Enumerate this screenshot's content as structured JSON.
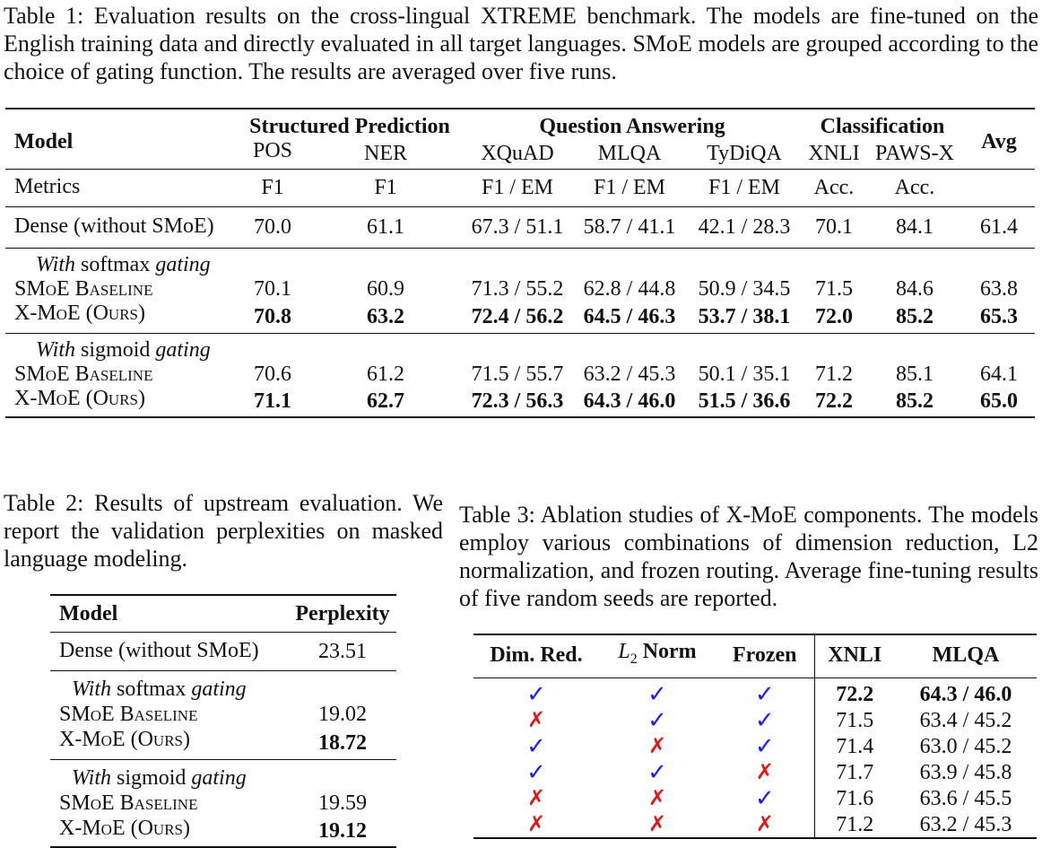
{
  "table1": {
    "caption": "Table 1: Evaluation results on the cross-lingual XTREME benchmark. The models are fine-tuned on the English training data and directly evaluated in all target languages. SMoE models are grouped according to the choice of gating function. The results are averaged over five runs.",
    "group_headers": [
      "Structured Prediction",
      "Question Answering",
      "Classification"
    ],
    "model_header": "Model",
    "avg_header": "Avg",
    "columns": [
      "POS",
      "NER",
      "XQuAD",
      "MLQA",
      "TyDiQA",
      "XNLI",
      "PAWS-X"
    ],
    "metrics_label": "Metrics",
    "metrics": [
      "F1",
      "F1",
      "F1 / EM",
      "F1 / EM",
      "F1 / EM",
      "Acc.",
      "Acc."
    ],
    "dense": {
      "model": "Dense (without SMoE)",
      "values": [
        "70.0",
        "61.1",
        "67.3 / 51.1",
        "58.7 / 41.1",
        "42.1 / 28.3",
        "70.1",
        "84.1",
        "61.4"
      ]
    },
    "softmax_group": {
      "label_with": "With",
      "label_fn": "softmax",
      "label_gating": "gating",
      "baseline": {
        "model": "SMoE Baseline",
        "values": [
          "70.1",
          "60.9",
          "71.3 / 55.2",
          "62.8 / 44.8",
          "50.9 / 34.5",
          "71.5",
          "84.6",
          "63.8"
        ]
      },
      "xmoe": {
        "model": "X-MoE (Ours)",
        "values": [
          "70.8",
          "63.2",
          "72.4 / 56.2",
          "64.5 / 46.3",
          "53.7 / 38.1",
          "72.0",
          "85.2",
          "65.3"
        ]
      }
    },
    "sigmoid_group": {
      "label_with": "With",
      "label_fn": "sigmoid",
      "label_gating": "gating",
      "baseline": {
        "model": "SMoE Baseline",
        "values": [
          "70.6",
          "61.2",
          "71.5 / 55.7",
          "63.2 / 45.3",
          "50.1 / 35.1",
          "71.2",
          "85.1",
          "64.1"
        ]
      },
      "xmoe": {
        "model": "X-MoE (Ours)",
        "values": [
          "71.1",
          "62.7",
          "72.3 / 56.3",
          "64.3 / 46.0",
          "51.5 / 36.6",
          "72.2",
          "85.2",
          "65.0"
        ]
      }
    }
  },
  "table2": {
    "caption": "Table 2: Results of upstream evaluation. We report the validation perplexities on masked language modeling.",
    "header_model": "Model",
    "header_perplexity": "Perplexity",
    "dense": {
      "model": "Dense (without SMoE)",
      "value": "23.51"
    },
    "softmax_group": {
      "label_with": "With",
      "label_fn": "softmax",
      "label_gating": "gating",
      "baseline": {
        "model": "SMoE Baseline",
        "value": "19.02"
      },
      "xmoe": {
        "model": "X-MoE (Ours)",
        "value": "18.72"
      }
    },
    "sigmoid_group": {
      "label_with": "With",
      "label_fn": "sigmoid",
      "label_gating": "gating",
      "baseline": {
        "model": "SMoE Baseline",
        "value": "19.59"
      },
      "xmoe": {
        "model": "X-MoE (Ours)",
        "value": "19.12"
      }
    }
  },
  "table3": {
    "caption": "Table 3: Ablation studies of X-MoE components. The models employ various combinations of dimension reduction, L2 normalization, and frozen routing. Average fine-tuning results of five random seeds are reported.",
    "headers": {
      "dim_red": "Dim. Red.",
      "l2_norm_L": "L",
      "l2_norm_sub": "2",
      "l2_norm_word": "Norm",
      "frozen": "Frozen",
      "xnli": "XNLI",
      "mlqa": "MLQA"
    },
    "check_symbol": "✓",
    "cross_symbol": "✗",
    "rows": [
      {
        "dim_red": true,
        "l2": true,
        "frozen": true,
        "xnli": "72.2",
        "mlqa": "64.3 / 46.0"
      },
      {
        "dim_red": false,
        "l2": true,
        "frozen": true,
        "xnli": "71.5",
        "mlqa": "63.4 / 45.2"
      },
      {
        "dim_red": true,
        "l2": false,
        "frozen": true,
        "xnli": "71.4",
        "mlqa": "63.0 / 45.2"
      },
      {
        "dim_red": true,
        "l2": true,
        "frozen": false,
        "xnli": "71.7",
        "mlqa": "63.9 / 45.8"
      },
      {
        "dim_red": false,
        "l2": false,
        "frozen": true,
        "xnli": "71.6",
        "mlqa": "63.6 / 45.5"
      },
      {
        "dim_red": false,
        "l2": false,
        "frozen": false,
        "xnli": "71.2",
        "mlqa": "63.2 / 45.3"
      }
    ]
  }
}
